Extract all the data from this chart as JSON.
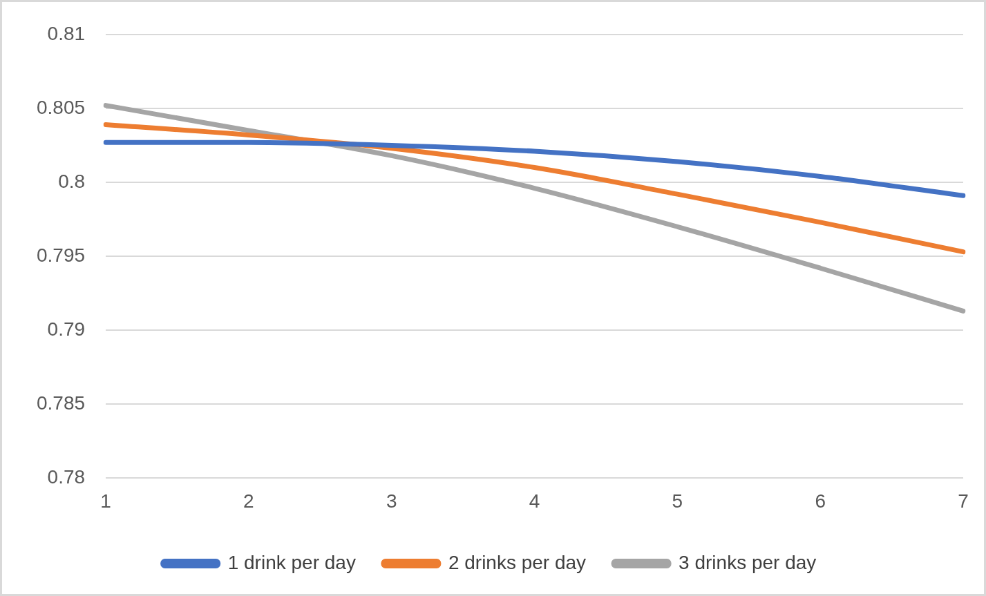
{
  "chart_data": {
    "type": "line",
    "categories": [
      "1",
      "2",
      "3",
      "4",
      "5",
      "6",
      "7"
    ],
    "series": [
      {
        "name": "1 drink per day",
        "color": "#4472c4",
        "values": [
          0.8027,
          0.8027,
          0.8025,
          0.8021,
          0.8014,
          0.8004,
          0.7991
        ]
      },
      {
        "name": "2 drinks per day",
        "color": "#ed7d31",
        "values": [
          0.8039,
          0.8032,
          0.8023,
          0.801,
          0.7992,
          0.7973,
          0.7953
        ]
      },
      {
        "name": "3 drinks per day",
        "color": "#a5a5a5",
        "values": [
          0.8052,
          0.8035,
          0.8018,
          0.7996,
          0.797,
          0.7942,
          0.7913
        ]
      }
    ],
    "ylim": [
      0.78,
      0.81
    ],
    "yticks": [
      0.78,
      0.785,
      0.79,
      0.795,
      0.8,
      0.805,
      0.81
    ],
    "grid": "y",
    "legend": "bottom",
    "marker": "none",
    "line_style": "solid"
  }
}
